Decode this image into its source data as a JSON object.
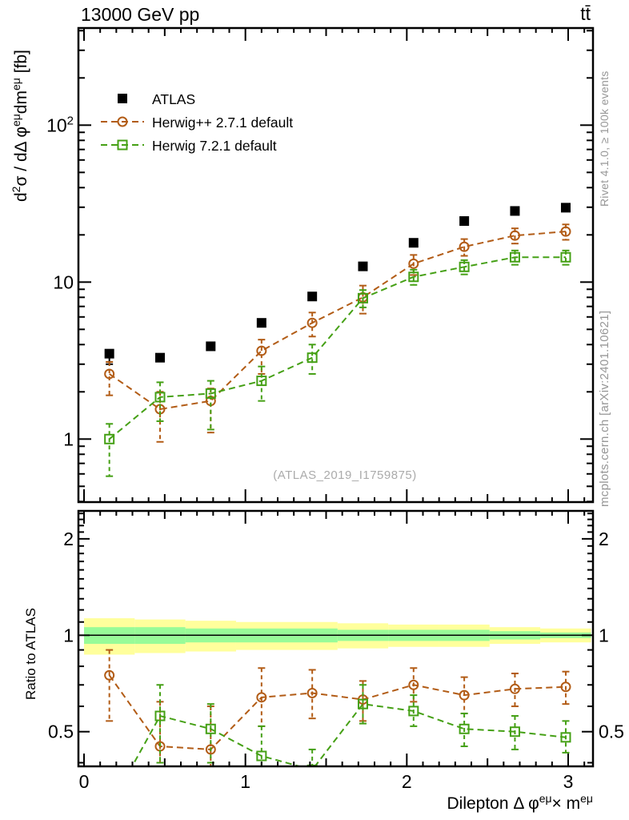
{
  "notes": {
    "rivet": "Rivet 4.1.0, ≥ 100k events",
    "mcplots": "mcplots.cern.ch [arXiv:2401.10621]",
    "watermark": "(ATLAS_2019_I1759875)"
  },
  "chart_data": {
    "type": "scatter",
    "title": "13000 GeV pp",
    "top_right_label": "tt̄",
    "xlabel_segments": [
      {
        "t": "Dilepton Δ φ"
      },
      {
        "t": "eμ",
        "sup": true
      },
      {
        "t": "× m"
      },
      {
        "t": "eμ",
        "sup": true
      }
    ],
    "ylabel_segments": [
      {
        "t": "d"
      },
      {
        "t": "2",
        "sup": true
      },
      {
        "t": "σ / dΔ φ"
      },
      {
        "t": "eμ",
        "sup": true
      },
      {
        "t": "dm"
      },
      {
        "t": "eμ",
        "sup": true
      },
      {
        "t": " [fb]"
      }
    ],
    "ratio_ylabel": "Ratio to ATLAS",
    "y_scale": "log",
    "ratio_scale": "log",
    "x_range": [
      -0.035,
      3.165
    ],
    "y_range": [
      0.39,
      416
    ],
    "ratio_range": [
      0.39,
      2.45
    ],
    "grid": false,
    "legend_position": "top-left-inside",
    "x_ticks": [
      {
        "v": 0,
        "label": "0"
      },
      {
        "v": 1,
        "label": "1"
      },
      {
        "v": 2,
        "label": "2"
      },
      {
        "v": 3,
        "label": "3"
      }
    ],
    "y_ticks": [
      {
        "v": 100,
        "base": "10",
        "exp": "2"
      },
      {
        "v": 10,
        "base": "10",
        "exp": ""
      },
      {
        "v": 1,
        "base": "1",
        "exp": ""
      }
    ],
    "ratio_ticks": [
      {
        "v": 2,
        "label": "2"
      },
      {
        "v": 1,
        "label": "1"
      },
      {
        "v": 0.5,
        "label": "0.5"
      }
    ],
    "bin_edges": [
      0,
      0.314,
      0.628,
      0.942,
      1.257,
      1.571,
      1.885,
      2.199,
      2.513,
      2.827,
      3.142
    ],
    "x": [
      0.157,
      0.471,
      0.785,
      1.1,
      1.414,
      1.728,
      2.042,
      2.356,
      2.67,
      2.985
    ],
    "series": [
      {
        "name": "ATLAS",
        "color": "#000000",
        "marker": "filled-square",
        "line": "none",
        "values": [
          3.5,
          3.3,
          3.9,
          5.5,
          8.1,
          12.6,
          17.8,
          24.5,
          28.4,
          29.8
        ],
        "err_up": [
          3.65,
          3.45,
          4.05,
          5.68,
          8.35,
          13.0,
          18.3,
          25.2,
          29.1,
          30.5
        ],
        "err_dn": [
          3.0,
          3.15,
          3.75,
          5.32,
          7.85,
          12.2,
          17.3,
          23.8,
          27.7,
          29.1
        ]
      },
      {
        "name": "Herwig++ 2.7.1 default",
        "color": "#b25c16",
        "marker": "open-circle",
        "line": "dashed",
        "values": [
          2.6,
          1.55,
          1.75,
          3.65,
          5.5,
          8.0,
          13.1,
          16.8,
          19.8,
          21.0
        ],
        "err_up": [
          3.1,
          2.0,
          2.1,
          4.3,
          6.4,
          9.5,
          14.9,
          18.8,
          22.0,
          23.3
        ],
        "err_dn": [
          1.9,
          0.96,
          1.1,
          2.6,
          4.5,
          6.3,
          11.1,
          14.7,
          17.6,
          18.6
        ],
        "ratio": [
          0.75,
          0.45,
          0.44,
          0.64,
          0.66,
          0.63,
          0.7,
          0.65,
          0.68,
          0.69
        ],
        "ratio_err_up": [
          0.9,
          0.62,
          0.6,
          0.79,
          0.78,
          0.72,
          0.79,
          0.74,
          0.76,
          0.77
        ],
        "ratio_err_dn": [
          0.54,
          0.36,
          0.35,
          0.52,
          0.55,
          0.54,
          0.62,
          0.57,
          0.6,
          0.61
        ]
      },
      {
        "name": "Herwig 7.2.1 default",
        "color": "#45a015",
        "marker": "open-square",
        "line": "dashed",
        "values": [
          1.0,
          1.85,
          1.95,
          2.35,
          3.3,
          7.9,
          10.8,
          12.5,
          14.4,
          14.4
        ],
        "err_up": [
          1.25,
          2.3,
          2.35,
          2.9,
          4.0,
          8.9,
          12.0,
          13.8,
          15.9,
          15.9
        ],
        "err_dn": [
          0.58,
          1.3,
          1.15,
          1.75,
          2.6,
          6.9,
          9.6,
          11.2,
          12.9,
          12.9
        ],
        "ratio": [
          0.29,
          0.56,
          0.51,
          0.42,
          0.38,
          0.61,
          0.58,
          0.51,
          0.5,
          0.48
        ],
        "ratio_err_up": [
          0.35,
          0.7,
          0.61,
          0.52,
          0.44,
          0.7,
          0.65,
          0.57,
          0.56,
          0.54
        ],
        "ratio_err_dn": [
          0.24,
          0.4,
          0.4,
          0.34,
          0.33,
          0.53,
          0.52,
          0.45,
          0.44,
          0.43
        ]
      }
    ],
    "ratio_bands": {
      "yellow": {
        "color": "#ffff9c",
        "hi": [
          1.13,
          1.12,
          1.11,
          1.1,
          1.1,
          1.09,
          1.08,
          1.08,
          1.06,
          1.05
        ],
        "lo": [
          0.87,
          0.88,
          0.89,
          0.9,
          0.9,
          0.91,
          0.92,
          0.92,
          0.94,
          0.95
        ]
      },
      "green": {
        "color": "#98fb98",
        "hi": [
          1.06,
          1.06,
          1.05,
          1.05,
          1.05,
          1.04,
          1.04,
          1.04,
          1.03,
          1.02
        ],
        "lo": [
          0.94,
          0.94,
          0.95,
          0.95,
          0.95,
          0.96,
          0.96,
          0.96,
          0.97,
          0.98
        ]
      }
    }
  }
}
